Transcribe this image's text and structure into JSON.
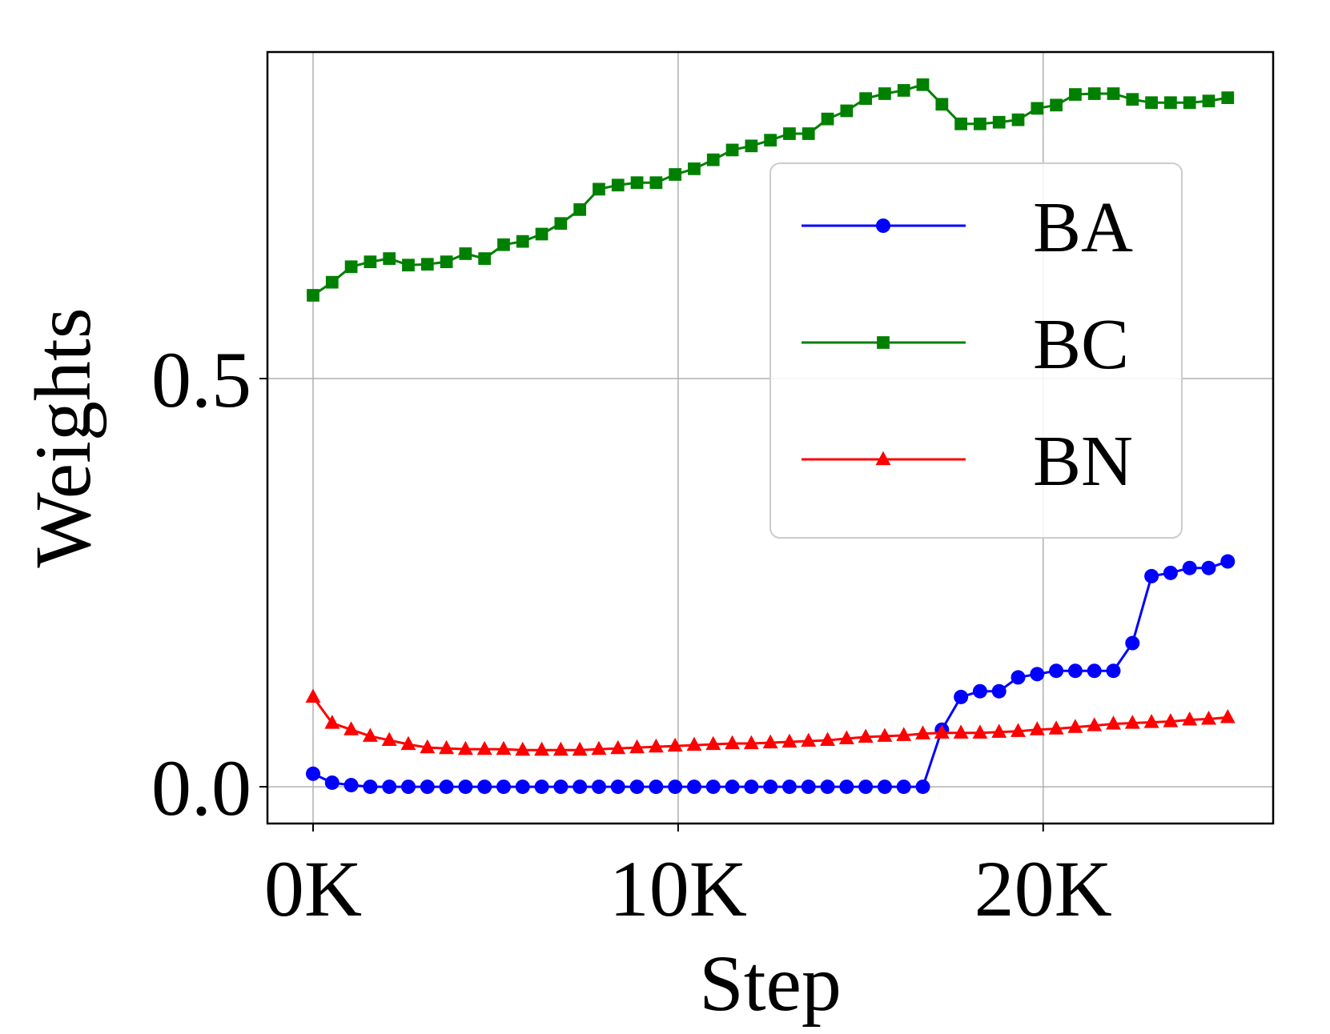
{
  "chart_data": {
    "type": "line",
    "xlabel": "Step",
    "ylabel": "Weights",
    "xlim": [
      -1250,
      26300
    ],
    "ylim": [
      -0.045,
      0.9
    ],
    "xticks": [
      0,
      10000,
      20000
    ],
    "xtick_labels": [
      "0K",
      "10K",
      "20K"
    ],
    "yticks": [
      0.0,
      0.5
    ],
    "ytick_labels": [
      "0.0",
      "0.5"
    ],
    "grid": true,
    "legend_position": "upper right",
    "x": [
      0,
      522,
      1044,
      1566,
      2088,
      2610,
      3132,
      3654,
      4176,
      4698,
      5220,
      5742,
      6264,
      6786,
      7308,
      7830,
      8352,
      8874,
      9396,
      9918,
      10440,
      10962,
      11484,
      12006,
      12528,
      13050,
      13572,
      14094,
      14616,
      15138,
      15660,
      16182,
      16704,
      17226,
      17748,
      18270,
      18792,
      19314,
      19836,
      20358,
      20880,
      21402,
      21924,
      22446,
      22968,
      23490,
      24012,
      24534,
      25056
    ],
    "series": [
      {
        "name": "BA",
        "color": "#0000ff",
        "marker": "circle",
        "values": [
          0.016,
          0.005,
          0.002,
          0.0,
          0.0,
          0.0,
          0.0,
          0.0,
          0.0,
          0.0,
          0.0,
          0.0,
          0.0,
          0.0,
          0.0,
          0.0,
          0.0,
          0.0,
          0.0,
          0.0,
          0.0,
          0.0,
          0.0,
          0.0,
          0.0,
          0.0,
          0.0,
          0.0,
          0.0,
          0.0,
          0.0,
          0.0,
          0.0,
          0.07,
          0.11,
          0.117,
          0.117,
          0.134,
          0.138,
          0.142,
          0.142,
          0.142,
          0.142,
          0.176,
          0.258,
          0.262,
          0.268,
          0.268,
          0.276
        ]
      },
      {
        "name": "BC",
        "color": "#008000",
        "marker": "square",
        "values": [
          0.602,
          0.618,
          0.637,
          0.643,
          0.647,
          0.639,
          0.64,
          0.643,
          0.653,
          0.647,
          0.664,
          0.668,
          0.677,
          0.69,
          0.707,
          0.732,
          0.737,
          0.74,
          0.74,
          0.75,
          0.757,
          0.768,
          0.78,
          0.785,
          0.792,
          0.8,
          0.8,
          0.818,
          0.828,
          0.843,
          0.849,
          0.853,
          0.86,
          0.836,
          0.812,
          0.812,
          0.814,
          0.817,
          0.831,
          0.835,
          0.848,
          0.849,
          0.849,
          0.842,
          0.838,
          0.838,
          0.838,
          0.84,
          0.844
        ]
      },
      {
        "name": "BN",
        "color": "#ff0000",
        "marker": "triangle",
        "values": [
          0.11,
          0.078,
          0.07,
          0.062,
          0.057,
          0.052,
          0.048,
          0.047,
          0.046,
          0.046,
          0.046,
          0.045,
          0.045,
          0.045,
          0.045,
          0.046,
          0.047,
          0.048,
          0.049,
          0.05,
          0.051,
          0.052,
          0.053,
          0.053,
          0.054,
          0.055,
          0.056,
          0.057,
          0.059,
          0.061,
          0.062,
          0.063,
          0.065,
          0.066,
          0.066,
          0.066,
          0.067,
          0.068,
          0.07,
          0.071,
          0.073,
          0.075,
          0.077,
          0.078,
          0.079,
          0.08,
          0.082,
          0.083,
          0.085
        ]
      }
    ]
  }
}
